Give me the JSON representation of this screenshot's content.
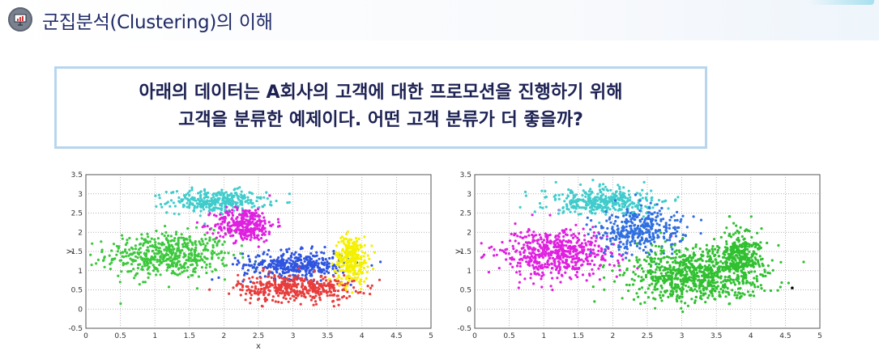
{
  "header": {
    "title": "군집분석(Clustering)의 이해",
    "icon": "presentation-chart-icon"
  },
  "question": {
    "line1": "아래의 데이터는 A회사의 고객에 대한 프로모션을 진행하기 위해",
    "line2": "고객을 분류한 예제이다. 어떤 고객 분류가 더 좋을까?"
  },
  "chart_data": [
    {
      "type": "scatter",
      "xlabel": "x",
      "ylabel": "y",
      "xlim": [
        0,
        5
      ],
      "ylim": [
        -0.5,
        3.5
      ],
      "xticks": [
        "0",
        "0.5",
        "1",
        "1.5",
        "2",
        "2.5",
        "3",
        "3.5",
        "4",
        "4.5",
        "5"
      ],
      "yticks": [
        "-0.5",
        "0",
        "0.5",
        "1",
        "1.5",
        "2",
        "2.5",
        "3",
        "3.5"
      ],
      "grid": true,
      "series": [
        {
          "color": "#3cc83c",
          "center": [
            1.2,
            1.4
          ],
          "spread": [
            0.45,
            0.3
          ],
          "count": 520
        },
        {
          "color": "#40cccc",
          "center": [
            1.9,
            2.8
          ],
          "spread": [
            0.35,
            0.15
          ],
          "count": 320
        },
        {
          "color": "#e020e0",
          "center": [
            2.3,
            2.2
          ],
          "spread": [
            0.22,
            0.22
          ],
          "count": 320
        },
        {
          "color": "#2f55e0",
          "center": [
            3.05,
            1.15
          ],
          "spread": [
            0.38,
            0.18
          ],
          "count": 400
        },
        {
          "color": "#e83c3c",
          "center": [
            3.05,
            0.55
          ],
          "spread": [
            0.42,
            0.18
          ],
          "count": 420
        },
        {
          "color": "#f4f000",
          "center": [
            3.85,
            1.3
          ],
          "spread": [
            0.12,
            0.3
          ],
          "count": 300
        }
      ]
    },
    {
      "type": "scatter",
      "xlabel": "",
      "ylabel": "y",
      "xlim": [
        0,
        5
      ],
      "ylim": [
        -0.5,
        3.5
      ],
      "xticks": [
        "0",
        "0.5",
        "1",
        "1.5",
        "2",
        "2.5",
        "3",
        "3.5",
        "4",
        "4.5",
        "5"
      ],
      "yticks": [
        "-0.5",
        "0",
        "0.5",
        "1",
        "1.5",
        "2",
        "2.5",
        "3",
        "3.5"
      ],
      "grid": true,
      "series": [
        {
          "color": "#e020e0",
          "center": [
            1.15,
            1.45
          ],
          "spread": [
            0.42,
            0.32
          ],
          "count": 560
        },
        {
          "color": "#40cccc",
          "center": [
            1.85,
            2.8
          ],
          "spread": [
            0.4,
            0.18
          ],
          "count": 380
        },
        {
          "color": "#2f6fe0",
          "center": [
            2.4,
            2.05
          ],
          "spread": [
            0.3,
            0.28
          ],
          "count": 360
        },
        {
          "color": "#30c030",
          "center": [
            3.2,
            0.9
          ],
          "spread": [
            0.5,
            0.35
          ],
          "count": 800
        },
        {
          "color": "#30c030",
          "center": [
            3.85,
            1.4
          ],
          "spread": [
            0.15,
            0.35
          ],
          "count": 300
        }
      ],
      "extra_points": [
        {
          "x": 4.6,
          "y": 0.55,
          "color": "#000000"
        }
      ]
    }
  ]
}
